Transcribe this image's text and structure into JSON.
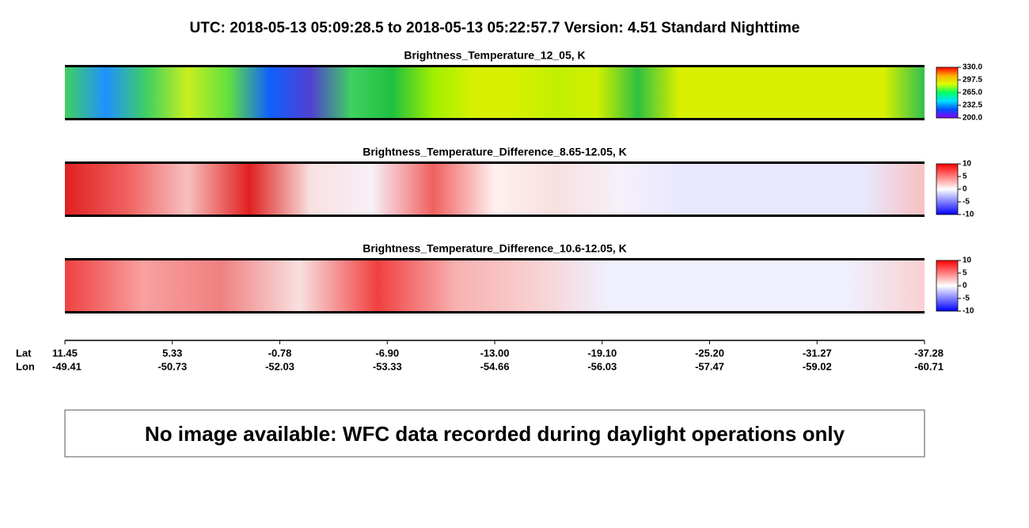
{
  "title": "UTC:  2018-05-13   05:09:28.5  to  2018-05-13   05:22:57.7    Version: 4.51  Standard Nighttime",
  "chart_data": [
    {
      "type": "heatmap",
      "title": "Brightness_Temperature_12_05, K",
      "colors": [
        "#8a00ff",
        "#0050ff",
        "#00e0ff",
        "#00ff60",
        "#d8ff00",
        "#ffb000",
        "#ff0000"
      ],
      "clim": [
        200,
        330
      ],
      "cticks": [
        {
          "value": 330,
          "label": "330.0"
        },
        {
          "value": 297.5,
          "label": "297.5"
        },
        {
          "value": 265,
          "label": "265.0"
        },
        {
          "value": 232.5,
          "label": "232.5"
        },
        {
          "value": 200,
          "label": "200.0"
        }
      ]
    },
    {
      "type": "heatmap",
      "title": "Brightness_Temperature_Difference_8.65-12.05, K",
      "colors": [
        "#0000ff",
        "#ffffff",
        "#ff0000"
      ],
      "clim": [
        -10,
        10
      ],
      "cticks": [
        10,
        5,
        0,
        -5,
        -10
      ]
    },
    {
      "type": "heatmap",
      "title": "Brightness_Temperature_Difference_10.6-12.05, K",
      "colors": [
        "#0000ff",
        "#ffffff",
        "#ff0000"
      ],
      "clim": [
        -10,
        10
      ],
      "cticks": [
        10,
        5,
        0,
        -5,
        -10
      ]
    }
  ],
  "x_axis": {
    "lat_label": "Lat",
    "lon_label": "Lon",
    "lat": [
      "11.45",
      "5.33",
      "-0.78",
      "-6.90",
      "-13.00",
      "-19.10",
      "-25.20",
      "-31.27",
      "-37.28"
    ],
    "lon": [
      "-49.41",
      "-50.73",
      "-52.03",
      "-53.33",
      "-54.66",
      "-56.03",
      "-57.47",
      "-59.02",
      "-60.71"
    ]
  },
  "notice": "No image available: WFC data recorded during daylight operations only"
}
